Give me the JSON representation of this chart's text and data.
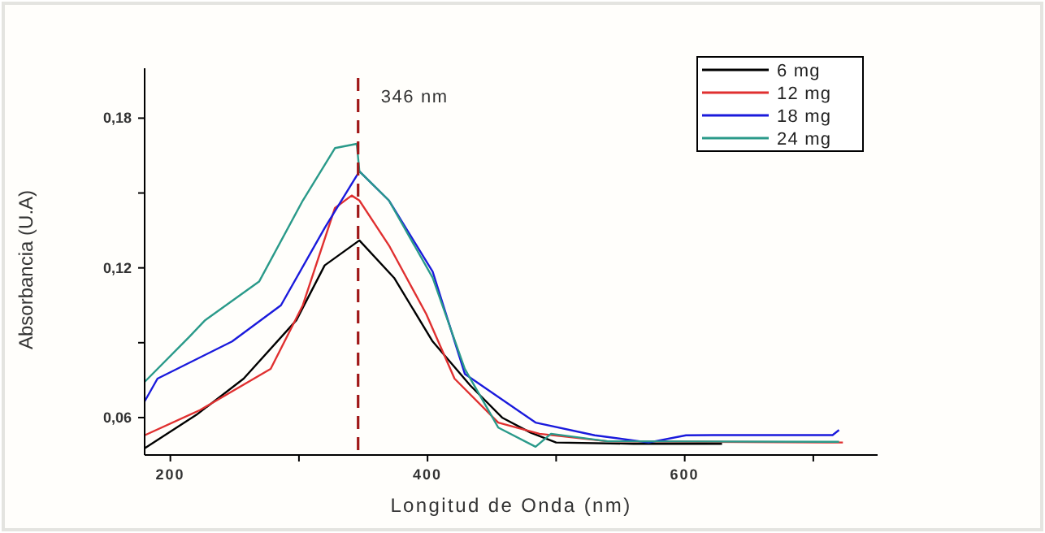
{
  "chart_data": {
    "type": "line",
    "xlabel": "Longitud de Onda (nm)",
    "ylabel": "Absorbancia (U.A)",
    "xlim": [
      180,
      750
    ],
    "ylim": [
      0.045,
      0.2
    ],
    "xticks": [
      200,
      {
        "value": 300,
        "label": null
      },
      400,
      {
        "value": 500,
        "label": null
      },
      600,
      {
        "value": 700,
        "label": null
      }
    ],
    "yticks": [
      {
        "value": 0.06,
        "label": "0,06"
      },
      {
        "value": 0.09,
        "label": null
      },
      {
        "value": 0.12,
        "label": "0,12"
      },
      {
        "value": 0.15,
        "label": null
      },
      {
        "value": 0.18,
        "label": "0,18"
      }
    ],
    "grid": false,
    "legend": "top right",
    "marker": "none",
    "line_style": "solid",
    "ref_lines": [
      {
        "axis": "x",
        "value": 346,
        "label": "346 nm",
        "color": "#a01818",
        "line_style": "dashed"
      }
    ],
    "series": [
      {
        "name": "6 mg",
        "color": "#000000",
        "x": [
          180,
          220,
          257,
          298,
          320,
          347,
          374,
          404,
          433,
          458,
          480,
          500,
          560,
          629
        ],
        "values": [
          0.0477,
          0.061,
          0.0756,
          0.099,
          0.121,
          0.131,
          0.116,
          0.0905,
          0.073,
          0.06,
          0.054,
          0.05,
          0.0495,
          0.0495
        ]
      },
      {
        "name": "12 mg",
        "color": "#e03030",
        "x": [
          180,
          223,
          278,
          303,
          328,
          341,
          347,
          370,
          399,
          421,
          455,
          487,
          540,
          723
        ],
        "values": [
          0.0529,
          0.063,
          0.0795,
          0.105,
          0.144,
          0.149,
          0.147,
          0.129,
          0.1015,
          0.0756,
          0.058,
          0.0535,
          0.0505,
          0.05
        ]
      },
      {
        "name": "18 mg",
        "color": "#1a1adc",
        "x": [
          180,
          190,
          248,
          286,
          320,
          347,
          370,
          404,
          429,
          484,
          530,
          572,
          601,
          622,
          715,
          720
        ],
        "values": [
          0.0665,
          0.0756,
          0.0905,
          0.105,
          0.136,
          0.1587,
          0.147,
          0.1185,
          0.0775,
          0.058,
          0.0529,
          0.05,
          0.0529,
          0.053,
          0.053,
          0.055
        ]
      },
      {
        "name": "24 mg",
        "color": "#2a9a8a",
        "x": [
          180,
          215,
          227,
          269,
          303,
          328,
          345,
          347,
          370,
          404,
          429,
          455,
          484,
          496,
          540,
          720
        ],
        "values": [
          0.0743,
          0.0925,
          0.099,
          0.1145,
          0.147,
          0.168,
          0.1697,
          0.1587,
          0.147,
          0.116,
          0.0795,
          0.056,
          0.0483,
          0.0535,
          0.0505,
          0.0503
        ]
      }
    ]
  }
}
